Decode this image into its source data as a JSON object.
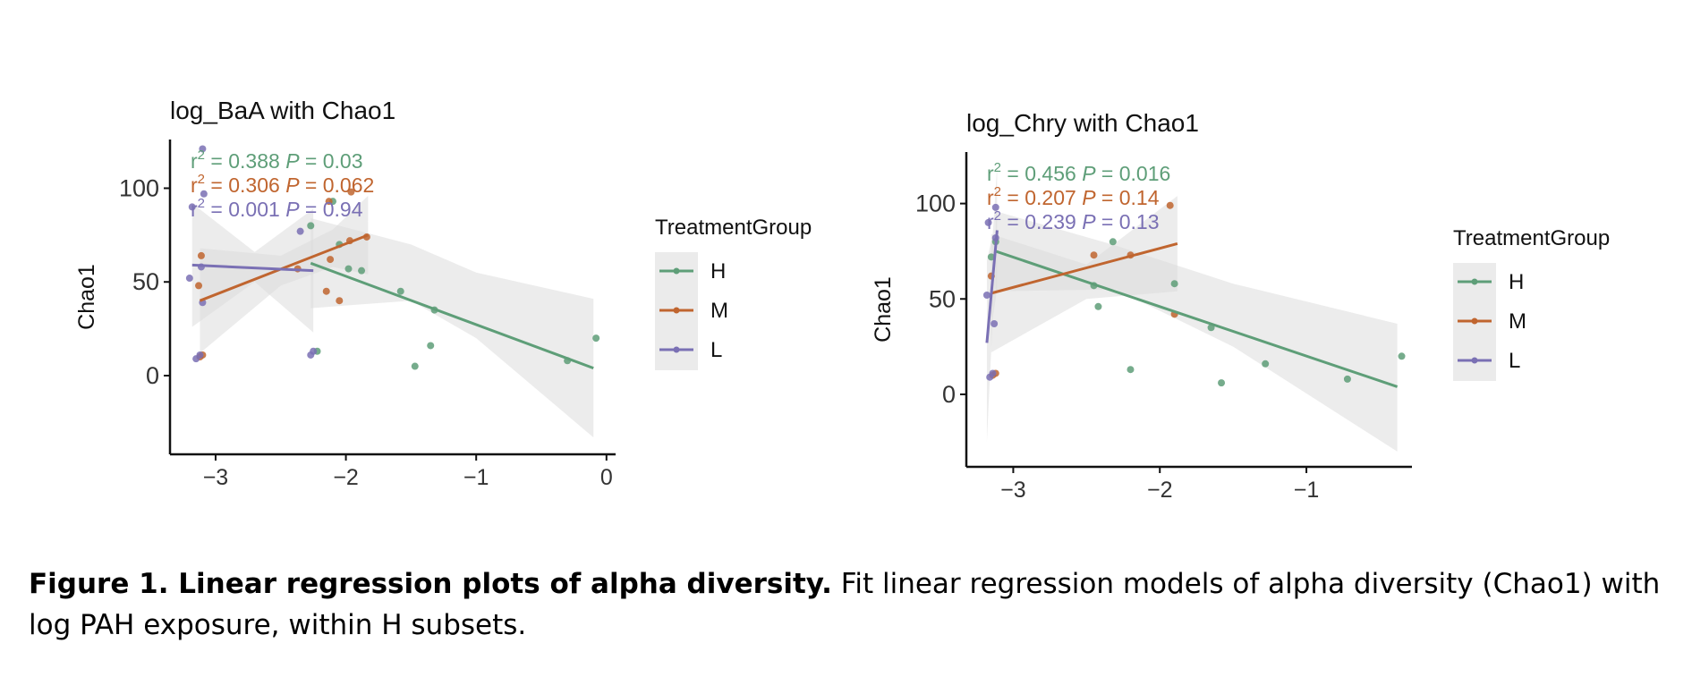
{
  "figure": {
    "caption_bold": "Figure 1. Linear regression plots of alpha diversity.",
    "caption_rest": " Fit linear regression models of alpha diversity (Chao1) with log PAH exposure, within H subsets."
  },
  "colors": {
    "H": "#5e9e78",
    "M": "#c0652f",
    "L": "#7a70b4",
    "band": "#dcdcdc"
  },
  "chart_data": [
    {
      "type": "scatter",
      "title": "log_BaA with Chao1",
      "ylabel": "Chao1",
      "xlabel": "",
      "xlim": [
        -3.35,
        0.07
      ],
      "ylim": [
        -42,
        126
      ],
      "xticks": [
        -3,
        -2,
        -1,
        0
      ],
      "xtick_labels": [
        "−3",
        "−2",
        "−1",
        "0"
      ],
      "yticks": [
        0,
        50,
        100
      ],
      "ytick_labels": [
        "0",
        "50",
        "100"
      ],
      "grid": false,
      "legend": {
        "title": "TreatmentGroup",
        "position": "right",
        "entries": [
          "H",
          "M",
          "L"
        ]
      },
      "stats": [
        {
          "group": "H",
          "r2": "0.388",
          "p": "0.03"
        },
        {
          "group": "M",
          "r2": "0.306",
          "p": "0.062"
        },
        {
          "group": "L",
          "r2": "0.001",
          "p": "0.94"
        }
      ],
      "series": [
        {
          "name": "H",
          "points": [
            [
              -2.27,
              80
            ],
            [
              -2.05,
              70
            ],
            [
              -1.98,
              57
            ],
            [
              -1.88,
              56
            ],
            [
              -1.58,
              45
            ],
            [
              -1.32,
              35
            ],
            [
              -1.35,
              16
            ],
            [
              -1.47,
              5
            ],
            [
              -0.3,
              8
            ],
            [
              -0.08,
              20
            ],
            [
              -2.22,
              13
            ],
            [
              -2.1,
              93
            ]
          ],
          "fit": [
            [
              -2.27,
              60
            ],
            [
              -0.1,
              4
            ]
          ],
          "band_upper": [
            [
              -2.27,
              84
            ],
            [
              -1.5,
              70
            ],
            [
              -1.0,
              55
            ],
            [
              -0.1,
              41
            ]
          ],
          "band_lower": [
            [
              -2.27,
              36
            ],
            [
              -1.5,
              40
            ],
            [
              -1.0,
              20
            ],
            [
              -0.1,
              -33
            ]
          ]
        },
        {
          "name": "M",
          "points": [
            [
              -3.12,
              10
            ],
            [
              -3.1,
              11
            ],
            [
              -3.13,
              48
            ],
            [
              -3.11,
              64
            ],
            [
              -2.15,
              45
            ],
            [
              -2.05,
              40
            ],
            [
              -2.13,
              93
            ],
            [
              -1.96,
              98
            ],
            [
              -1.84,
              74
            ],
            [
              -2.37,
              57
            ],
            [
              -2.12,
              62
            ],
            [
              -1.97,
              72
            ]
          ],
          "fit": [
            [
              -3.12,
              40
            ],
            [
              -1.83,
              75
            ]
          ],
          "band_upper": [
            [
              -3.12,
              68
            ],
            [
              -2.5,
              64
            ],
            [
              -2.1,
              78
            ],
            [
              -1.83,
              96
            ]
          ],
          "band_lower": [
            [
              -3.12,
              12
            ],
            [
              -2.5,
              48
            ],
            [
              -2.1,
              58
            ],
            [
              -1.83,
              54
            ]
          ]
        },
        {
          "name": "L",
          "points": [
            [
              -3.18,
              90
            ],
            [
              -3.2,
              52
            ],
            [
              -3.1,
              121
            ],
            [
              -3.09,
              97
            ],
            [
              -3.1,
              39
            ],
            [
              -3.15,
              9
            ],
            [
              -3.12,
              11
            ],
            [
              -2.35,
              77
            ],
            [
              -2.27,
              11
            ],
            [
              -2.25,
              13
            ],
            [
              -3.11,
              58
            ]
          ],
          "fit": [
            [
              -3.18,
              59
            ],
            [
              -2.25,
              56
            ]
          ],
          "band_upper": [
            [
              -3.18,
              92
            ],
            [
              -2.7,
              66
            ],
            [
              -2.25,
              89
            ]
          ],
          "band_lower": [
            [
              -3.18,
              26
            ],
            [
              -2.7,
              50
            ],
            [
              -2.25,
              23
            ]
          ]
        }
      ]
    },
    {
      "type": "scatter",
      "title": "log_Chry with Chao1",
      "ylabel": "Chao1",
      "xlabel": "",
      "xlim": [
        -3.32,
        -0.28
      ],
      "ylim": [
        -38,
        127
      ],
      "xticks": [
        -3,
        -2,
        -1
      ],
      "xtick_labels": [
        "−3",
        "−2",
        "−1"
      ],
      "yticks": [
        0,
        50,
        100
      ],
      "ytick_labels": [
        "0",
        "50",
        "100"
      ],
      "grid": false,
      "legend": {
        "title": "TreatmentGroup",
        "position": "right",
        "entries": [
          "H",
          "M",
          "L"
        ]
      },
      "stats": [
        {
          "group": "H",
          "r2": "0.456",
          "p": "0.016"
        },
        {
          "group": "M",
          "r2": "0.207",
          "p": "0.14"
        },
        {
          "group": "L",
          "r2": "0.239",
          "p": "0.13"
        }
      ],
      "series": [
        {
          "name": "H",
          "points": [
            [
              -3.15,
              72
            ],
            [
              -3.12,
              80
            ],
            [
              -2.32,
              80
            ],
            [
              -2.45,
              57
            ],
            [
              -2.42,
              46
            ],
            [
              -1.9,
              58
            ],
            [
              -1.65,
              35
            ],
            [
              -1.28,
              16
            ],
            [
              -1.58,
              6
            ],
            [
              -2.2,
              13
            ],
            [
              -0.72,
              8
            ],
            [
              -0.35,
              20
            ]
          ],
          "fit": [
            [
              -3.12,
              75
            ],
            [
              -0.38,
              4
            ]
          ],
          "band_upper": [
            [
              -3.12,
              96
            ],
            [
              -2.3,
              78
            ],
            [
              -1.5,
              58
            ],
            [
              -0.38,
              37
            ]
          ],
          "band_lower": [
            [
              -3.12,
              54
            ],
            [
              -2.3,
              55
            ],
            [
              -1.5,
              25
            ],
            [
              -0.38,
              -30
            ]
          ]
        },
        {
          "name": "M",
          "points": [
            [
              -3.14,
              10
            ],
            [
              -3.12,
              11
            ],
            [
              -3.15,
              62
            ],
            [
              -2.45,
              73
            ],
            [
              -2.2,
              73
            ],
            [
              -1.9,
              42
            ],
            [
              -1.93,
              99
            ]
          ],
          "fit": [
            [
              -3.15,
              53
            ],
            [
              -1.88,
              79
            ]
          ],
          "band_upper": [
            [
              -3.15,
              84
            ],
            [
              -2.5,
              68
            ],
            [
              -1.88,
              104
            ]
          ],
          "band_lower": [
            [
              -3.15,
              22
            ],
            [
              -2.5,
              50
            ],
            [
              -1.88,
              54
            ]
          ]
        },
        {
          "name": "L",
          "points": [
            [
              -3.17,
              90
            ],
            [
              -3.18,
              52
            ],
            [
              -3.12,
              98
            ],
            [
              -3.13,
              37
            ],
            [
              -3.16,
              9
            ],
            [
              -3.14,
              11
            ],
            [
              -3.12,
              82
            ]
          ],
          "fit": [
            [
              -3.18,
              27
            ],
            [
              -3.11,
              86
            ]
          ],
          "band_upper": [
            [
              -3.18,
              70
            ],
            [
              -3.14,
              84
            ],
            [
              -3.11,
              120
            ]
          ],
          "band_lower": [
            [
              -3.18,
              -25
            ],
            [
              -3.14,
              40
            ],
            [
              -3.11,
              55
            ]
          ]
        }
      ]
    }
  ]
}
